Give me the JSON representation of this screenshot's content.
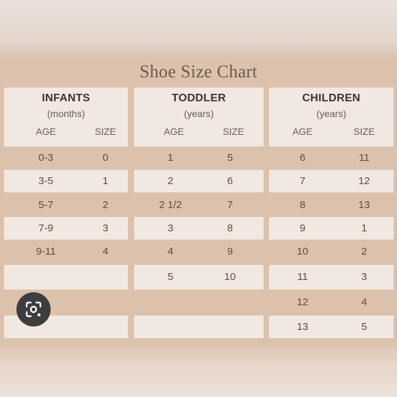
{
  "title": "Shoe Size Chart",
  "columns": [
    {
      "title": "INFANTS",
      "unit": "(months)",
      "age_header": "AGE",
      "size_header": "SIZE",
      "rows": [
        [
          "0-3",
          "0"
        ],
        [
          "3-5",
          "1"
        ],
        [
          "5-7",
          "2"
        ],
        [
          "7-9",
          "3"
        ],
        [
          "9-11",
          "4"
        ]
      ]
    },
    {
      "title": "TODDLER",
      "unit": "(years)",
      "age_header": "AGE",
      "size_header": "SIZE",
      "rows": [
        [
          "1",
          "5"
        ],
        [
          "2",
          "6"
        ],
        [
          "2 1/2",
          "7"
        ],
        [
          "3",
          "8"
        ],
        [
          "4",
          "9"
        ],
        [
          "5",
          "10"
        ]
      ]
    },
    {
      "title": "CHILDREN",
      "unit": "(years)",
      "age_header": "AGE",
      "size_header": "SIZE",
      "rows": [
        [
          "6",
          "11"
        ],
        [
          "7",
          "12"
        ],
        [
          "8",
          "13"
        ],
        [
          "9",
          "1"
        ],
        [
          "10",
          "2"
        ],
        [
          "11",
          "3"
        ],
        [
          "12",
          "4"
        ],
        [
          "13",
          "5"
        ]
      ]
    }
  ],
  "overlay_icon": "lens-search-icon"
}
